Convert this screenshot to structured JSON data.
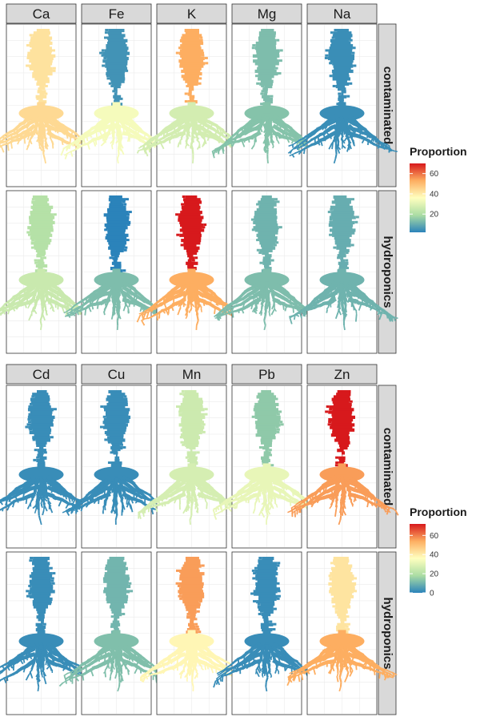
{
  "chart_data": [
    {
      "type": "heatmap",
      "title": "",
      "facet_columns": [
        "Ca",
        "Fe",
        "K",
        "Mg",
        "Na"
      ],
      "facet_rows": [
        "contaminated",
        "hydroponics"
      ],
      "series": [
        {
          "element": "Ca",
          "condition": "contaminated",
          "shoot": 42,
          "root": 44
        },
        {
          "element": "Fe",
          "condition": "contaminated",
          "shoot": 5,
          "root": 34
        },
        {
          "element": "K",
          "condition": "contaminated",
          "shoot": 53,
          "root": 27
        },
        {
          "element": "Mg",
          "condition": "contaminated",
          "shoot": 13,
          "root": 14
        },
        {
          "element": "Na",
          "condition": "contaminated",
          "shoot": 4,
          "root": 4
        },
        {
          "element": "Ca",
          "condition": "hydroponics",
          "shoot": 21,
          "root": 25
        },
        {
          "element": "Fe",
          "condition": "hydroponics",
          "shoot": 2,
          "root": 13
        },
        {
          "element": "K",
          "condition": "hydroponics",
          "shoot": 70,
          "root": 53
        },
        {
          "element": "Mg",
          "condition": "hydroponics",
          "shoot": 11,
          "root": 13
        },
        {
          "element": "Na",
          "condition": "hydroponics",
          "shoot": 10,
          "root": 11
        }
      ],
      "legend": {
        "title": "Proportion",
        "ticks": [
          20,
          40,
          60
        ],
        "min": 2,
        "max": 70,
        "position": "right"
      },
      "grid": true
    },
    {
      "type": "heatmap",
      "title": "",
      "facet_columns": [
        "Cd",
        "Cu",
        "Mn",
        "Pb",
        "Zn"
      ],
      "facet_rows": [
        "contaminated",
        "hydroponics"
      ],
      "series": [
        {
          "element": "Cd",
          "condition": "contaminated",
          "shoot": 2,
          "root": 2
        },
        {
          "element": "Cu",
          "condition": "contaminated",
          "shoot": 2,
          "root": 2
        },
        {
          "element": "Mn",
          "condition": "contaminated",
          "shoot": 25,
          "root": 27
        },
        {
          "element": "Pb",
          "condition": "contaminated",
          "shoot": 14,
          "root": 31
        },
        {
          "element": "Zn",
          "condition": "contaminated",
          "shoot": 72,
          "root": 56
        },
        {
          "element": "Cd",
          "condition": "hydroponics",
          "shoot": 2,
          "root": 2
        },
        {
          "element": "Cu",
          "condition": "hydroponics",
          "shoot": 10,
          "root": 12
        },
        {
          "element": "Mn",
          "condition": "hydroponics",
          "shoot": 56,
          "root": 38
        },
        {
          "element": "Pb",
          "condition": "hydroponics",
          "shoot": 2,
          "root": 2
        },
        {
          "element": "Zn",
          "condition": "hydroponics",
          "shoot": 42,
          "root": 54
        }
      ],
      "legend": {
        "title": "Proportion",
        "ticks": [
          0,
          20,
          40,
          60
        ],
        "min": 0,
        "max": 72,
        "position": "right"
      },
      "grid": true
    }
  ]
}
